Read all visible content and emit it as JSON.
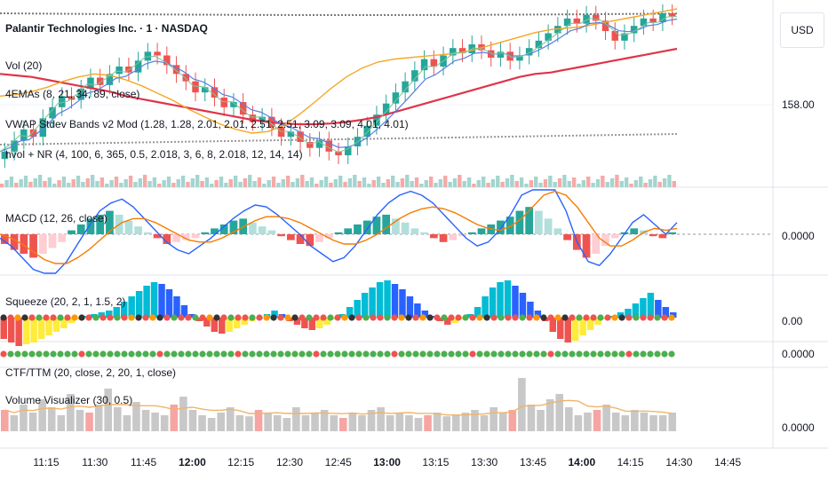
{
  "header": {
    "symbol": "Palantir Technologies Inc. · 1 · NASDAQ",
    "currency": "USD"
  },
  "price_axis": {
    "level_label": "158.00"
  },
  "indicators": {
    "vol": "Vol (20)",
    "emas": "4EMAs (8, 21, 34, 89, close)",
    "vwap": "VWAP Stdev Bands v2 Mod (1.28, 1.28, 2.01, 2.01, 2.51, 2.51, 3.09, 3.09, 4.01, 4.01)",
    "hvol": "hvol + NR (4, 100, 6, 365, 0.5, 2.018, 3, 6, 8, 2.018, 12, 14, 14)"
  },
  "panes": [
    {
      "name": "MACD (12, 26, close)",
      "value_label": "0.0000"
    },
    {
      "name": "Squeeze (20, 2, 1, 1.5, 2)",
      "value_label": "0.00"
    },
    {
      "name": "CTF/TTM (20, close, 2, 20, 1, close)",
      "value_label": "0.0000"
    },
    {
      "name": "Volume Visualizer (30, 0.5)",
      "value_label": "0.0000"
    }
  ],
  "time_axis": [
    {
      "label": "11:15",
      "bold": false
    },
    {
      "label": "11:30",
      "bold": false
    },
    {
      "label": "11:45",
      "bold": false
    },
    {
      "label": "12:00",
      "bold": true
    },
    {
      "label": "12:15",
      "bold": false
    },
    {
      "label": "12:30",
      "bold": false
    },
    {
      "label": "12:45",
      "bold": false
    },
    {
      "label": "13:00",
      "bold": true
    },
    {
      "label": "13:15",
      "bold": false
    },
    {
      "label": "13:30",
      "bold": false
    },
    {
      "label": "13:45",
      "bold": false
    },
    {
      "label": "14:00",
      "bold": true
    },
    {
      "label": "14:15",
      "bold": false
    },
    {
      "label": "14:30",
      "bold": false
    },
    {
      "label": "14:45",
      "bold": false
    }
  ],
  "colors": {
    "up": "#26a69a",
    "down": "#ef5350",
    "ema_red": "#e0344a",
    "ema_orange": "#f5a623",
    "ema_blue": "#5b7fe0",
    "ema_green": "#7cc59a",
    "macd_line": "#2962ff",
    "macd_signal": "#f57c00",
    "sqz_cyan": "#00bcd4",
    "sqz_blue": "#2962ff",
    "sqz_red": "#ef5350",
    "sqz_yellow": "#ffeb3b",
    "sqz_green": "#4caf50",
    "vv_line": "#f0b46a",
    "vv_bar": "#c8c8c8"
  },
  "chart_data": {
    "type": "line",
    "price": {
      "y_tick": 158.0,
      "close": [
        157.55,
        157.7,
        157.85,
        157.75,
        158.0,
        158.15,
        158.3,
        158.25,
        158.4,
        158.55,
        158.45,
        158.6,
        158.7,
        158.62,
        158.78,
        158.9,
        158.85,
        158.72,
        158.6,
        158.5,
        158.35,
        158.42,
        158.28,
        158.15,
        158.22,
        158.05,
        157.95,
        158.02,
        157.88,
        157.75,
        157.82,
        157.68,
        157.6,
        157.7,
        157.55,
        157.5,
        157.62,
        157.75,
        157.9,
        158.05,
        158.2,
        158.35,
        158.5,
        158.65,
        158.8,
        158.7,
        158.85,
        158.95,
        158.88,
        159.0,
        158.92,
        158.82,
        158.9,
        158.78,
        158.85,
        158.95,
        159.05,
        159.15,
        159.25,
        159.35,
        159.28,
        159.4,
        159.32,
        159.18,
        159.05,
        159.15,
        159.25,
        159.35,
        159.3,
        159.42,
        159.38
      ],
      "ema_slow": [
        158.6,
        158.58,
        158.56,
        158.52,
        158.48,
        158.44,
        158.4,
        158.36,
        158.3,
        158.26,
        158.22,
        158.18,
        158.14,
        158.1,
        158.06,
        158.02,
        157.98,
        157.95,
        157.93,
        157.92,
        157.92,
        157.93,
        157.95,
        157.98,
        158.02,
        158.08,
        158.14,
        158.2,
        158.26,
        158.32,
        158.38,
        158.44,
        158.5,
        158.56,
        158.6,
        158.62,
        158.66,
        158.7,
        158.74,
        158.78,
        158.82,
        158.86,
        158.9,
        158.94
      ],
      "ema_mid": [
        158.3,
        158.32,
        158.36,
        158.42,
        158.5,
        158.56,
        158.6,
        158.58,
        158.52,
        158.44,
        158.34,
        158.24,
        158.12,
        158.02,
        157.92,
        157.85,
        157.8,
        157.82,
        157.9,
        158.05,
        158.22,
        158.4,
        158.56,
        158.68,
        158.76,
        158.8,
        158.82,
        158.84,
        158.86,
        158.88,
        158.92,
        158.98,
        159.04,
        159.1,
        159.16,
        159.2,
        159.22,
        159.24,
        159.28,
        159.32,
        159.36,
        159.4,
        159.44,
        159.48
      ]
    },
    "macd": {
      "zero_label": "0.0000",
      "hist": [
        -0.05,
        -0.08,
        -0.1,
        -0.12,
        -0.1,
        -0.07,
        -0.04,
        0.02,
        0.05,
        0.08,
        0.1,
        0.12,
        0.1,
        0.07,
        0.04,
        0.01,
        -0.02,
        -0.05,
        -0.04,
        -0.03,
        -0.02,
        0.01,
        0.03,
        0.05,
        0.07,
        0.08,
        0.06,
        0.04,
        0.02,
        -0.01,
        -0.03,
        -0.05,
        -0.06,
        -0.04,
        -0.02,
        0.01,
        0.03,
        0.05,
        0.07,
        0.09,
        0.1,
        0.08,
        0.06,
        0.03,
        0.01,
        -0.02,
        -0.04,
        -0.03,
        -0.01,
        0.01,
        0.03,
        0.05,
        0.07,
        0.09,
        0.12,
        0.14,
        0.12,
        0.08,
        0.03,
        -0.03,
        -0.08,
        -0.12,
        -0.1,
        -0.06,
        -0.02,
        0.01,
        0.03,
        0.02,
        -0.01,
        -0.02,
        0.01
      ],
      "line": [
        -0.02,
        -0.06,
        -0.12,
        -0.18,
        -0.22,
        -0.2,
        -0.14,
        -0.05,
        0.04,
        0.12,
        0.16,
        0.18,
        0.14,
        0.08,
        0.02,
        -0.04,
        -0.08,
        -0.1,
        -0.06,
        -0.02,
        0.03,
        0.08,
        0.12,
        0.15,
        0.14,
        0.1,
        0.05,
        0.0,
        -0.06,
        -0.1,
        -0.14,
        -0.12,
        -0.06,
        0.02,
        0.1,
        0.16,
        0.2,
        0.22,
        0.2,
        0.16,
        0.1,
        0.04,
        -0.02,
        -0.06,
        -0.04,
        0.02,
        0.1,
        0.2,
        0.3,
        0.34,
        0.26,
        0.12,
        -0.04,
        -0.14,
        -0.16,
        -0.1,
        -0.02,
        0.06,
        0.1,
        0.05,
        0.0,
        0.06
      ],
      "signal": [
        0.0,
        -0.02,
        -0.05,
        -0.09,
        -0.13,
        -0.15,
        -0.15,
        -0.12,
        -0.08,
        -0.03,
        0.02,
        0.06,
        0.08,
        0.08,
        0.06,
        0.03,
        0.0,
        -0.03,
        -0.04,
        -0.04,
        -0.02,
        0.01,
        0.04,
        0.07,
        0.09,
        0.09,
        0.08,
        0.06,
        0.03,
        0.0,
        -0.03,
        -0.05,
        -0.05,
        -0.03,
        0.0,
        0.04,
        0.08,
        0.11,
        0.13,
        0.14,
        0.13,
        0.11,
        0.08,
        0.05,
        0.03,
        0.02,
        0.04,
        0.08,
        0.14,
        0.2,
        0.22,
        0.2,
        0.14,
        0.06,
        -0.02,
        -0.06,
        -0.06,
        -0.03,
        0.01,
        0.03,
        0.02,
        0.03
      ]
    },
    "squeeze": {
      "zero_label": "0.00",
      "values": [
        -0.6,
        -0.7,
        -0.8,
        -0.75,
        -0.7,
        -0.6,
        -0.5,
        -0.4,
        -0.3,
        -0.15,
        -0.05,
        0.05,
        0.1,
        0.15,
        0.2,
        0.3,
        0.45,
        0.6,
        0.75,
        0.9,
        1.0,
        0.95,
        0.8,
        0.6,
        0.35,
        0.1,
        -0.1,
        -0.25,
        -0.4,
        -0.45,
        -0.4,
        -0.3,
        -0.2,
        -0.1,
        0.0,
        0.1,
        0.2,
        0.1,
        -0.1,
        -0.2,
        -0.3,
        -0.35,
        -0.3,
        -0.2,
        -0.05,
        0.1,
        0.3,
        0.5,
        0.7,
        0.85,
        1.0,
        1.05,
        0.95,
        0.8,
        0.6,
        0.4,
        0.2,
        0.05,
        -0.1,
        -0.2,
        -0.15,
        -0.05,
        0.1,
        0.3,
        0.6,
        0.85,
        1.0,
        1.05,
        0.9,
        0.7,
        0.45,
        0.2,
        -0.1,
        -0.4,
        -0.6,
        -0.7,
        -0.65,
        -0.5,
        -0.35,
        -0.2,
        -0.05,
        0.05,
        0.15,
        0.25,
        0.4,
        0.55,
        0.7,
        0.5,
        0.3,
        0.15
      ]
    },
    "volume_visualizer": {
      "zero_label": "0.0000",
      "bars": [
        0.4,
        0.3,
        0.5,
        0.35,
        0.6,
        0.45,
        0.3,
        0.7,
        0.4,
        0.35,
        0.5,
        0.8,
        0.45,
        0.3,
        0.55,
        0.4,
        0.35,
        0.3,
        0.5,
        0.65,
        0.4,
        0.3,
        0.25,
        0.35,
        0.45,
        0.3,
        0.28,
        0.4,
        0.35,
        0.3,
        0.25,
        0.45,
        0.3,
        0.35,
        0.4,
        0.3,
        0.25,
        0.35,
        0.3,
        0.4,
        0.45,
        0.3,
        0.35,
        0.3,
        0.25,
        0.3,
        0.35,
        0.28,
        0.3,
        0.35,
        0.4,
        0.3,
        0.45,
        0.35,
        0.4,
        1.0,
        0.5,
        0.4,
        0.6,
        0.7,
        0.45,
        0.3,
        0.35,
        0.4,
        0.5,
        0.35,
        0.3,
        0.4,
        0.35,
        0.3,
        0.3,
        0.35
      ]
    }
  }
}
